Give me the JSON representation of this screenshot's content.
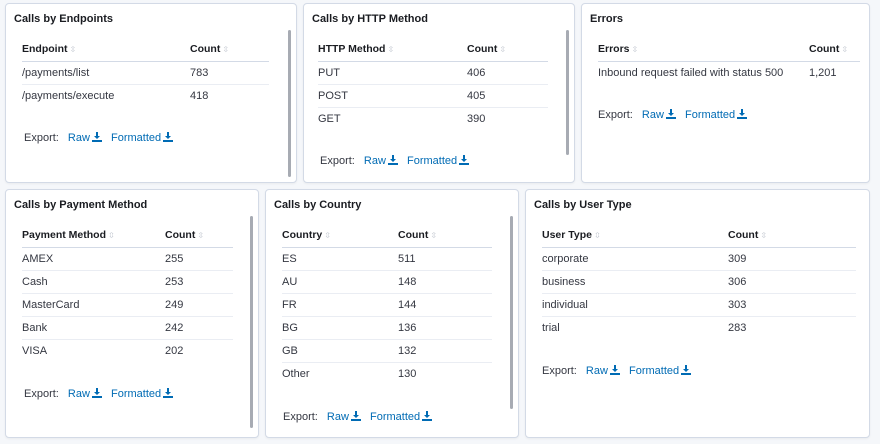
{
  "export": {
    "label": "Export:",
    "raw": "Raw",
    "formatted": "Formatted"
  },
  "panels": {
    "endpoints": {
      "title": "Calls by Endpoints",
      "columns": [
        "Endpoint",
        "Count"
      ],
      "rows": [
        [
          "/payments/list",
          "783"
        ],
        [
          "/payments/execute",
          "418"
        ]
      ]
    },
    "http": {
      "title": "Calls by HTTP Method",
      "columns": [
        "HTTP Method",
        "Count"
      ],
      "rows": [
        [
          "PUT",
          "406"
        ],
        [
          "POST",
          "405"
        ],
        [
          "GET",
          "390"
        ]
      ]
    },
    "errors": {
      "title": "Errors",
      "columns": [
        "Errors",
        "Count"
      ],
      "rows": [
        [
          "Inbound request failed with status 500",
          "1,201"
        ]
      ]
    },
    "payment": {
      "title": "Calls by Payment Method",
      "columns": [
        "Payment Method",
        "Count"
      ],
      "rows": [
        [
          "AMEX",
          "255"
        ],
        [
          "Cash",
          "253"
        ],
        [
          "MasterCard",
          "249"
        ],
        [
          "Bank",
          "242"
        ],
        [
          "VISA",
          "202"
        ]
      ]
    },
    "country": {
      "title": "Calls by Country",
      "columns": [
        "Country",
        "Count"
      ],
      "rows": [
        [
          "ES",
          "511"
        ],
        [
          "AU",
          "148"
        ],
        [
          "FR",
          "144"
        ],
        [
          "BG",
          "136"
        ],
        [
          "GB",
          "132"
        ],
        [
          "Other",
          "130"
        ]
      ]
    },
    "usertype": {
      "title": "Calls by User Type",
      "columns": [
        "User Type",
        "Count"
      ],
      "rows": [
        [
          "corporate",
          "309"
        ],
        [
          "business",
          "306"
        ],
        [
          "individual",
          "303"
        ],
        [
          "trial",
          "283"
        ]
      ]
    }
  }
}
